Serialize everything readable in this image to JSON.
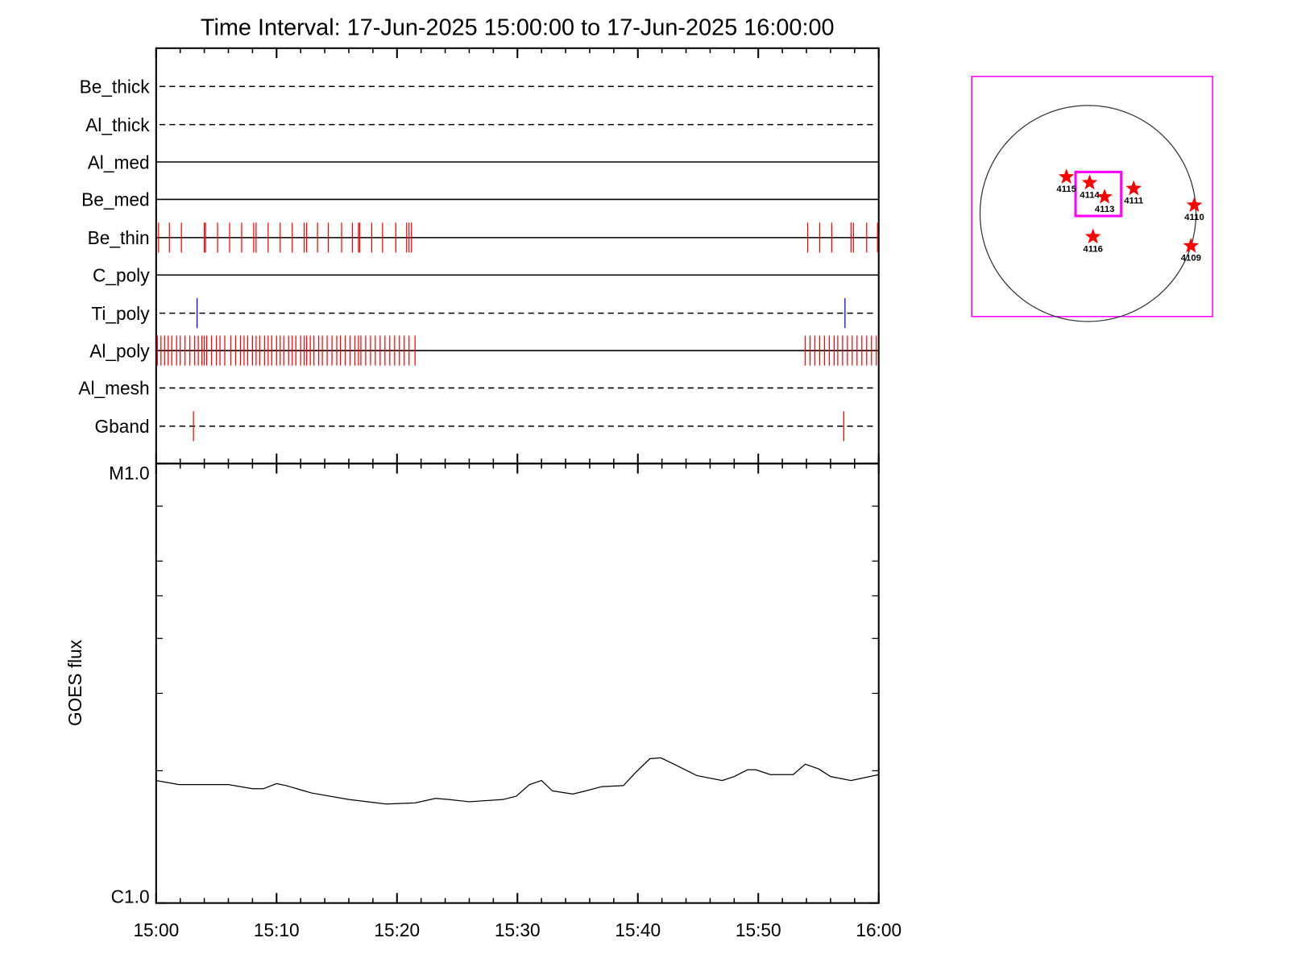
{
  "chart_data": [
    {
      "type": "timeline",
      "title": "Time Interval: 17-Jun-2025 15:00:00 to 17-Jun-2025 16:00:00",
      "xlim": [
        0,
        60
      ],
      "xminorticks": [
        2,
        4,
        6,
        8,
        12,
        14,
        16,
        18,
        22,
        24,
        26,
        28,
        32,
        34,
        36,
        38,
        42,
        44,
        46,
        48,
        52,
        54,
        56,
        58
      ],
      "rows": [
        {
          "name": "Be_thick",
          "style": "dashed",
          "events": []
        },
        {
          "name": "Al_thick",
          "style": "dashed",
          "events": []
        },
        {
          "name": "Al_med",
          "style": "solid",
          "events": []
        },
        {
          "name": "Be_med",
          "style": "solid",
          "events": []
        },
        {
          "name": "Be_thin",
          "style": "solid",
          "color": "#ff0000",
          "events": [
            0.2,
            1.1,
            2.1,
            4.0,
            4.1,
            5.1,
            6.1,
            7.1,
            8.1,
            8.3,
            9.3,
            10.3,
            11.3,
            12.3,
            12.5,
            13.4,
            14.3,
            15.4,
            16.3,
            16.8,
            16.9,
            17.9,
            18.8,
            19.9,
            20.8,
            21.0,
            21.2,
            54.1,
            55.1,
            56.1,
            57.7,
            57.9,
            59.0,
            59.9
          ]
        },
        {
          "name": "C_poly",
          "style": "solid",
          "events": []
        },
        {
          "name": "Ti_poly",
          "style": "dashed",
          "color": "#0000cc",
          "events": [
            3.4,
            57.2
          ]
        },
        {
          "name": "Al_poly",
          "style": "solid",
          "color": "#ff0000",
          "events": [
            0.1,
            0.4,
            0.7,
            1.0,
            1.3,
            1.7,
            2.0,
            2.4,
            2.8,
            3.2,
            3.5,
            3.8,
            4.0,
            4.2,
            4.6,
            5.0,
            5.3,
            5.7,
            6.2,
            6.6,
            7.0,
            7.3,
            7.6,
            8.0,
            8.3,
            8.6,
            9.0,
            9.3,
            9.6,
            10.0,
            10.3,
            10.6,
            11.0,
            11.3,
            11.6,
            12.0,
            12.3,
            12.5,
            12.8,
            13.1,
            13.5,
            13.8,
            14.2,
            14.6,
            15.0,
            15.3,
            15.7,
            16.1,
            16.5,
            16.8,
            17.0,
            17.4,
            17.8,
            18.2,
            18.6,
            19.0,
            19.4,
            19.8,
            20.2,
            20.6,
            21.0,
            21.5,
            53.9,
            54.3,
            54.7,
            55.1,
            55.5,
            55.9,
            56.3,
            56.6,
            57.0,
            57.4,
            57.8,
            58.2,
            58.6,
            59.0,
            59.4,
            59.8
          ]
        },
        {
          "name": "Al_mesh",
          "style": "dashed",
          "events": []
        },
        {
          "name": "Gband",
          "style": "dashed",
          "color": "#ff0000",
          "events": [
            3.1,
            57.1
          ]
        }
      ]
    },
    {
      "type": "line",
      "ylabel": "GOES flux",
      "log": true,
      "color": "#000000",
      "xlim": [
        0,
        60
      ],
      "xticks": [
        {
          "value": 0,
          "label": "15:00"
        },
        {
          "value": 10,
          "label": "15:10"
        },
        {
          "value": 20,
          "label": "15:20"
        },
        {
          "value": 30,
          "label": "15:30"
        },
        {
          "value": 40,
          "label": "15:40"
        },
        {
          "value": 50,
          "label": "15:50"
        },
        {
          "value": 60,
          "label": "16:00"
        }
      ],
      "xminorticks": [
        2,
        4,
        6,
        8,
        12,
        14,
        16,
        18,
        22,
        24,
        26,
        28,
        32,
        34,
        36,
        38,
        42,
        44,
        46,
        48,
        52,
        54,
        56,
        58
      ],
      "ylim": [
        1e-06,
        1e-05
      ],
      "yticks": [
        {
          "value": 1e-06,
          "label": "C1.0"
        },
        {
          "value": 1e-05,
          "label": "M1.0"
        }
      ],
      "yminorticks": [
        2e-06,
        3e-06,
        4e-06,
        5e-06,
        6e-06,
        8e-06
      ],
      "x": [
        0,
        1.9,
        6,
        8,
        8.9,
        10,
        10.8,
        12.9,
        16,
        19.1,
        21.5,
        23.2,
        24.3,
        26,
        28.8,
        29.9,
        31,
        32,
        32.9,
        34.6,
        35.7,
        37,
        38.8,
        39.8,
        41,
        41.9,
        43,
        44.9,
        47,
        48,
        49.1,
        49.8,
        51,
        52.9,
        53.9,
        55,
        56,
        57.7,
        60
      ],
      "values": [
        1.9e-06,
        1.86e-06,
        1.86e-06,
        1.82e-06,
        1.82e-06,
        1.87e-06,
        1.85e-06,
        1.78e-06,
        1.72e-06,
        1.68e-06,
        1.69e-06,
        1.73e-06,
        1.72e-06,
        1.7e-06,
        1.72e-06,
        1.75e-06,
        1.86e-06,
        1.9e-06,
        1.8e-06,
        1.77e-06,
        1.8e-06,
        1.84e-06,
        1.85e-06,
        1.98e-06,
        2.13e-06,
        2.14e-06,
        2.07e-06,
        1.95e-06,
        1.9e-06,
        1.94e-06,
        2.01e-06,
        2.01e-06,
        1.96e-06,
        1.96e-06,
        2.07e-06,
        2.02e-06,
        1.94e-06,
        1.9e-06,
        1.96e-06
      ]
    },
    {
      "type": "map",
      "regions": [
        "4115",
        "4114",
        "4113",
        "4111",
        "4110",
        "4116",
        "4109"
      ]
    }
  ]
}
